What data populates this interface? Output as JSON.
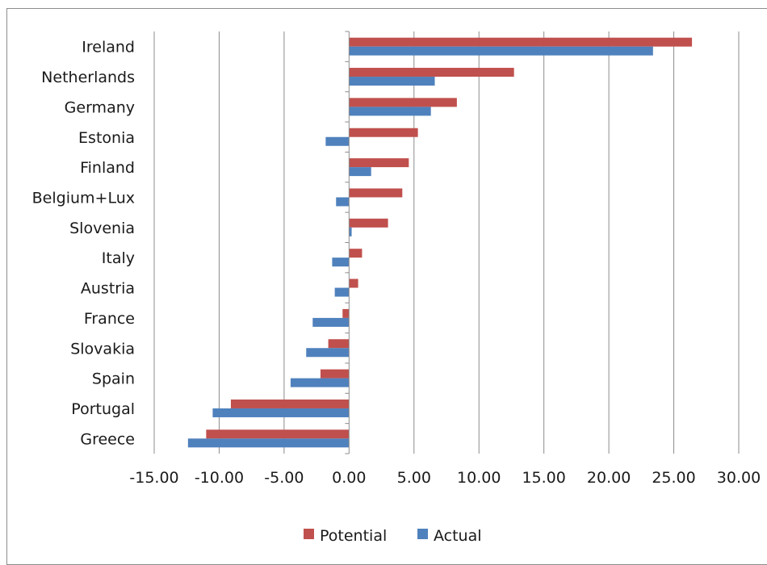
{
  "chart_data": {
    "type": "bar",
    "orientation": "horizontal",
    "categories": [
      "Ireland",
      "Netherlands",
      "Germany",
      "Estonia",
      "Finland",
      "Belgium+Lux",
      "Slovenia",
      "Italy",
      "Austria",
      "France",
      "Slovakia",
      "Spain",
      "Portugal",
      "Greece"
    ],
    "series": [
      {
        "name": "Potential",
        "color": "#c0504d",
        "values": [
          26.4,
          12.7,
          8.3,
          5.3,
          4.6,
          4.1,
          3.0,
          1.0,
          0.7,
          -0.5,
          -1.6,
          -2.2,
          -9.1,
          -11.0
        ]
      },
      {
        "name": "Actual",
        "color": "#4f81bd",
        "values": [
          23.4,
          6.6,
          6.3,
          -1.8,
          1.7,
          -1.0,
          0.2,
          -1.3,
          -1.1,
          -2.8,
          -3.3,
          -4.5,
          -10.5,
          -12.4
        ]
      }
    ],
    "xlim": [
      -15,
      30
    ],
    "ticks": [
      -15,
      -10,
      -5,
      0,
      5,
      10,
      15,
      20,
      25,
      30
    ],
    "tick_labels": [
      "-15.00",
      "-10.00",
      "-5.00",
      "0.00",
      "5.00",
      "10.00",
      "15.00",
      "20.00",
      "25.00",
      "30.00"
    ],
    "grid": "vertical",
    "legend_position": "bottom"
  },
  "legend": {
    "potential_label": "Potential",
    "actual_label": "Actual"
  }
}
